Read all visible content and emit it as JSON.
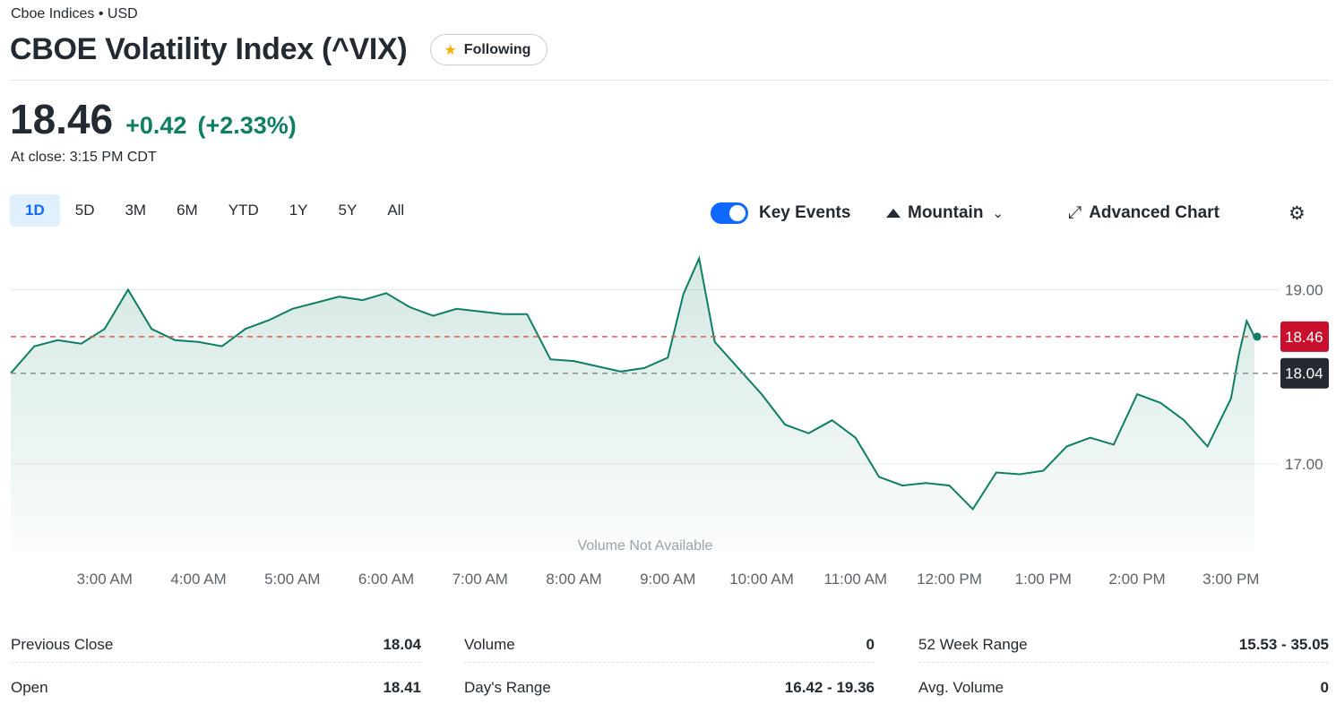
{
  "header": {
    "exchange": "Cboe Indices • USD",
    "title": "CBOE Volatility Index (^VIX)",
    "follow_label": "Following",
    "follow_icon": "star-icon"
  },
  "quote": {
    "price": "18.46",
    "change": "+0.42",
    "change_pct": "(+2.33%)",
    "close_time": "At close: 3:15 PM CDT",
    "up_color": "#0e7e64"
  },
  "range_tabs": [
    "1D",
    "5D",
    "3M",
    "6M",
    "YTD",
    "1Y",
    "5Y",
    "All"
  ],
  "active_range": "1D",
  "toolbar": {
    "key_events_label": "Key Events",
    "key_events_on": true,
    "chart_type_label": "Mountain",
    "advanced_label": "Advanced Chart",
    "settings_icon": "gear-icon"
  },
  "chart_data": {
    "type": "area",
    "x": [
      "2:00 AM",
      "2:15 AM",
      "2:30 AM",
      "2:45 AM",
      "3:00 AM",
      "3:15 AM",
      "3:30 AM",
      "3:45 AM",
      "4:00 AM",
      "4:15 AM",
      "4:30 AM",
      "4:45 AM",
      "5:00 AM",
      "5:15 AM",
      "5:30 AM",
      "5:45 AM",
      "6:00 AM",
      "6:15 AM",
      "6:30 AM",
      "6:45 AM",
      "7:00 AM",
      "7:15 AM",
      "7:30 AM",
      "7:45 AM",
      "8:00 AM",
      "8:15 AM",
      "8:30 AM",
      "8:45 AM",
      "9:00 AM",
      "9:10 AM",
      "9:20 AM",
      "9:30 AM",
      "9:45 AM",
      "10:00 AM",
      "10:15 AM",
      "10:30 AM",
      "10:45 AM",
      "11:00 AM",
      "11:15 AM",
      "11:30 AM",
      "11:45 AM",
      "12:00 PM",
      "12:15 PM",
      "12:30 PM",
      "12:45 PM",
      "1:00 PM",
      "1:15 PM",
      "1:30 PM",
      "1:45 PM",
      "2:00 PM",
      "2:15 PM",
      "2:30 PM",
      "2:45 PM",
      "3:00 PM",
      "3:05 PM",
      "3:10 PM",
      "3:15 PM"
    ],
    "values": [
      18.04,
      18.35,
      18.42,
      18.38,
      18.55,
      19.0,
      18.55,
      18.42,
      18.4,
      18.35,
      18.55,
      18.65,
      18.78,
      18.85,
      18.92,
      18.88,
      18.96,
      18.8,
      18.7,
      18.78,
      18.75,
      18.72,
      18.72,
      18.2,
      18.18,
      18.12,
      18.06,
      18.1,
      18.22,
      18.95,
      19.36,
      18.4,
      18.1,
      17.8,
      17.45,
      17.35,
      17.5,
      17.3,
      16.85,
      16.75,
      16.78,
      16.75,
      16.48,
      16.9,
      16.88,
      16.92,
      17.2,
      17.3,
      17.22,
      17.8,
      17.7,
      17.5,
      17.2,
      17.75,
      18.25,
      18.64,
      18.46
    ],
    "previous_close": 18.04,
    "current": 18.46,
    "y_ticks": [
      "19.00",
      "17.00"
    ],
    "x_ticks": [
      "3:00 AM",
      "4:00 AM",
      "5:00 AM",
      "6:00 AM",
      "7:00 AM",
      "8:00 AM",
      "9:00 AM",
      "10:00 AM",
      "11:00 AM",
      "12:00 PM",
      "1:00 PM",
      "2:00 PM",
      "3:00 PM"
    ],
    "ylim": [
      16.0,
      19.55
    ],
    "current_label": "18.46",
    "prev_label": "18.04",
    "volume_note": "Volume Not Available",
    "line_color": "#0e7e64",
    "current_color": "#c8102e",
    "prev_color": "#232a31"
  },
  "stats": [
    {
      "label": "Previous Close",
      "value": "18.04"
    },
    {
      "label": "Volume",
      "value": "0"
    },
    {
      "label": "52 Week Range",
      "value": "15.53 - 35.05"
    },
    {
      "label": "Open",
      "value": "18.41"
    },
    {
      "label": "Day's Range",
      "value": "16.42 - 19.36"
    },
    {
      "label": "Avg. Volume",
      "value": "0"
    }
  ]
}
